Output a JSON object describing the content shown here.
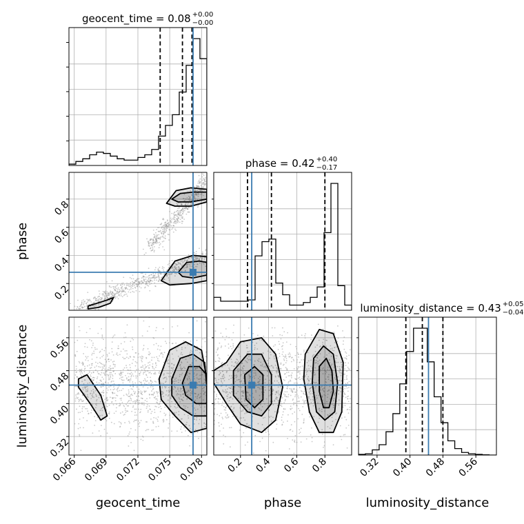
{
  "chart_data": {
    "type": "corner",
    "parameters": [
      "geocent_time",
      "phase",
      "luminosity_distance"
    ],
    "colors": {
      "truth": "#3a7bb0",
      "hist": "#000000",
      "grid": "#b0b0b0",
      "samples": "#9a9a9a"
    },
    "grid": true,
    "titles": [
      {
        "param": "geocent_time",
        "median": "0.08",
        "plus": "+0.00",
        "minus": "−0.00"
      },
      {
        "param": "phase",
        "median": "0.42",
        "plus": "+0.40",
        "minus": "−0.17"
      },
      {
        "param": "luminosity_distance",
        "median": "0.43",
        "plus": "+0.05",
        "minus": "−0.04"
      }
    ],
    "truths": {
      "geocent_time": 0.0772,
      "phase": 0.28,
      "luminosity_distance": 0.445
    },
    "quantiles": {
      "geocent_time": [
        0.0741,
        0.0762,
        0.0771
      ],
      "phase": [
        0.25,
        0.42,
        0.8
      ],
      "luminosity_distance": [
        0.39,
        0.43,
        0.48
      ]
    },
    "ranges": {
      "geocent_time": [
        0.0655,
        0.0785
      ],
      "phase": [
        0.01,
        0.99
      ],
      "luminosity_distance": [
        0.275,
        0.61
      ]
    },
    "ticks": {
      "geocent_time": {
        "values": [
          0.066,
          0.069,
          0.072,
          0.075,
          0.078
        ],
        "labels": [
          "0.066",
          "0.069",
          "0.072",
          "0.075",
          "0.078"
        ]
      },
      "phase": {
        "values": [
          0.2,
          0.4,
          0.6,
          0.8
        ],
        "labels": [
          "0.2",
          "0.4",
          "0.6",
          "0.8"
        ]
      },
      "luminosity_distance": {
        "values": [
          0.32,
          0.4,
          0.48,
          0.56
        ],
        "labels": [
          "0.32",
          "0.40",
          "0.48",
          "0.56"
        ]
      }
    },
    "histograms": {
      "geocent_time": {
        "bin_start": 0.0655,
        "bin_width": 0.00065,
        "counts": [
          0.01,
          0.03,
          0.05,
          0.08,
          0.1,
          0.09,
          0.07,
          0.05,
          0.04,
          0.04,
          0.06,
          0.08,
          0.12,
          0.22,
          0.3,
          0.38,
          0.55,
          0.75,
          0.95,
          0.8
        ]
      },
      "phase": {
        "bin_start": 0.01,
        "bin_width": 0.049,
        "counts": [
          0.1,
          0.07,
          0.07,
          0.07,
          0.07,
          0.08,
          0.42,
          0.53,
          0.55,
          0.21,
          0.12,
          0.04,
          0.04,
          0.06,
          0.1,
          0.18,
          0.6,
          0.98,
          0.19,
          0.04
        ]
      },
      "luminosity_distance": {
        "bin_start": 0.275,
        "bin_width": 0.0167,
        "counts": [
          0.005,
          0.01,
          0.04,
          0.08,
          0.18,
          0.32,
          0.55,
          0.8,
          0.98,
          0.98,
          0.72,
          0.45,
          0.25,
          0.11,
          0.05,
          0.02,
          0.01,
          0.005,
          0.002,
          0.0
        ]
      }
    },
    "pairs": [
      {
        "x": "geocent_time",
        "y": "phase",
        "contours": [
          [
            [
              0.0747,
              0.77
            ],
            [
              0.0756,
              0.86
            ],
            [
              0.077,
              0.88
            ],
            [
              0.0785,
              0.87
            ],
            [
              0.0785,
              0.78
            ],
            [
              0.077,
              0.75
            ],
            [
              0.0755,
              0.75
            ]
          ],
          [
            [
              0.0752,
              0.8
            ],
            [
              0.076,
              0.84
            ],
            [
              0.0772,
              0.85
            ],
            [
              0.0785,
              0.85
            ],
            [
              0.0785,
              0.8
            ],
            [
              0.077,
              0.78
            ],
            [
              0.0758,
              0.78
            ]
          ],
          [
            [
              0.0742,
              0.22
            ],
            [
              0.0755,
              0.36
            ],
            [
              0.0772,
              0.4
            ],
            [
              0.0785,
              0.39
            ],
            [
              0.0785,
              0.22
            ],
            [
              0.077,
              0.2
            ],
            [
              0.075,
              0.19
            ]
          ],
          [
            [
              0.0758,
              0.28
            ],
            [
              0.0766,
              0.35
            ],
            [
              0.0778,
              0.36
            ],
            [
              0.0785,
              0.35
            ],
            [
              0.0785,
              0.26
            ],
            [
              0.0772,
              0.24
            ],
            [
              0.0762,
              0.25
            ]
          ],
          [
            [
              0.0673,
              0.04
            ],
            [
              0.069,
              0.08
            ],
            [
              0.0697,
              0.1
            ],
            [
              0.0694,
              0.06
            ],
            [
              0.0683,
              0.03
            ],
            [
              0.0673,
              0.02
            ]
          ]
        ]
      },
      {
        "x": "geocent_time",
        "y": "luminosity_distance",
        "contours": [
          [
            [
              0.074,
              0.46
            ],
            [
              0.075,
              0.53
            ],
            [
              0.0765,
              0.55
            ],
            [
              0.078,
              0.53
            ],
            [
              0.0785,
              0.46
            ],
            [
              0.0785,
              0.34
            ],
            [
              0.077,
              0.33
            ],
            [
              0.0755,
              0.37
            ],
            [
              0.0742,
              0.41
            ]
          ],
          [
            [
              0.0752,
              0.46
            ],
            [
              0.076,
              0.51
            ],
            [
              0.0772,
              0.52
            ],
            [
              0.0783,
              0.5
            ],
            [
              0.0785,
              0.44
            ],
            [
              0.0785,
              0.37
            ],
            [
              0.0772,
              0.37
            ],
            [
              0.076,
              0.39
            ],
            [
              0.0752,
              0.42
            ]
          ],
          [
            [
              0.0762,
              0.45
            ],
            [
              0.0768,
              0.49
            ],
            [
              0.0778,
              0.49
            ],
            [
              0.0785,
              0.47
            ],
            [
              0.0785,
              0.4
            ],
            [
              0.0775,
              0.4
            ],
            [
              0.0765,
              0.42
            ]
          ],
          [
            [
              0.0664,
              0.46
            ],
            [
              0.0672,
              0.47
            ],
            [
              0.0685,
              0.42
            ],
            [
              0.0691,
              0.37
            ],
            [
              0.0685,
              0.36
            ],
            [
              0.0675,
              0.4
            ],
            [
              0.0664,
              0.44
            ]
          ]
        ]
      },
      {
        "x": "phase",
        "y": "luminosity_distance",
        "contours": [
          [
            [
              0.1,
              0.5
            ],
            [
              0.2,
              0.55
            ],
            [
              0.35,
              0.56
            ],
            [
              0.45,
              0.52
            ],
            [
              0.5,
              0.44
            ],
            [
              0.45,
              0.36
            ],
            [
              0.35,
              0.33
            ],
            [
              0.2,
              0.35
            ],
            [
              0.1,
              0.4
            ],
            [
              0.01,
              0.45
            ],
            [
              0.01,
              0.48
            ]
          ],
          [
            [
              0.15,
              0.48
            ],
            [
              0.25,
              0.52
            ],
            [
              0.35,
              0.52
            ],
            [
              0.42,
              0.47
            ],
            [
              0.42,
              0.4
            ],
            [
              0.35,
              0.37
            ],
            [
              0.25,
              0.38
            ],
            [
              0.15,
              0.42
            ]
          ],
          [
            [
              0.23,
              0.47
            ],
            [
              0.3,
              0.49
            ],
            [
              0.36,
              0.47
            ],
            [
              0.36,
              0.41
            ],
            [
              0.3,
              0.39
            ],
            [
              0.24,
              0.41
            ]
          ],
          [
            [
              0.66,
              0.52
            ],
            [
              0.76,
              0.58
            ],
            [
              0.86,
              0.57
            ],
            [
              0.93,
              0.5
            ],
            [
              0.92,
              0.38
            ],
            [
              0.86,
              0.33
            ],
            [
              0.76,
              0.33
            ],
            [
              0.69,
              0.38
            ],
            [
              0.65,
              0.46
            ]
          ],
          [
            [
              0.72,
              0.51
            ],
            [
              0.79,
              0.54
            ],
            [
              0.86,
              0.52
            ],
            [
              0.89,
              0.45
            ],
            [
              0.87,
              0.38
            ],
            [
              0.8,
              0.36
            ],
            [
              0.74,
              0.38
            ],
            [
              0.71,
              0.45
            ]
          ],
          [
            [
              0.76,
              0.49
            ],
            [
              0.81,
              0.51
            ],
            [
              0.85,
              0.48
            ],
            [
              0.86,
              0.43
            ],
            [
              0.83,
              0.39
            ],
            [
              0.79,
              0.39
            ],
            [
              0.76,
              0.43
            ]
          ]
        ]
      }
    ]
  }
}
